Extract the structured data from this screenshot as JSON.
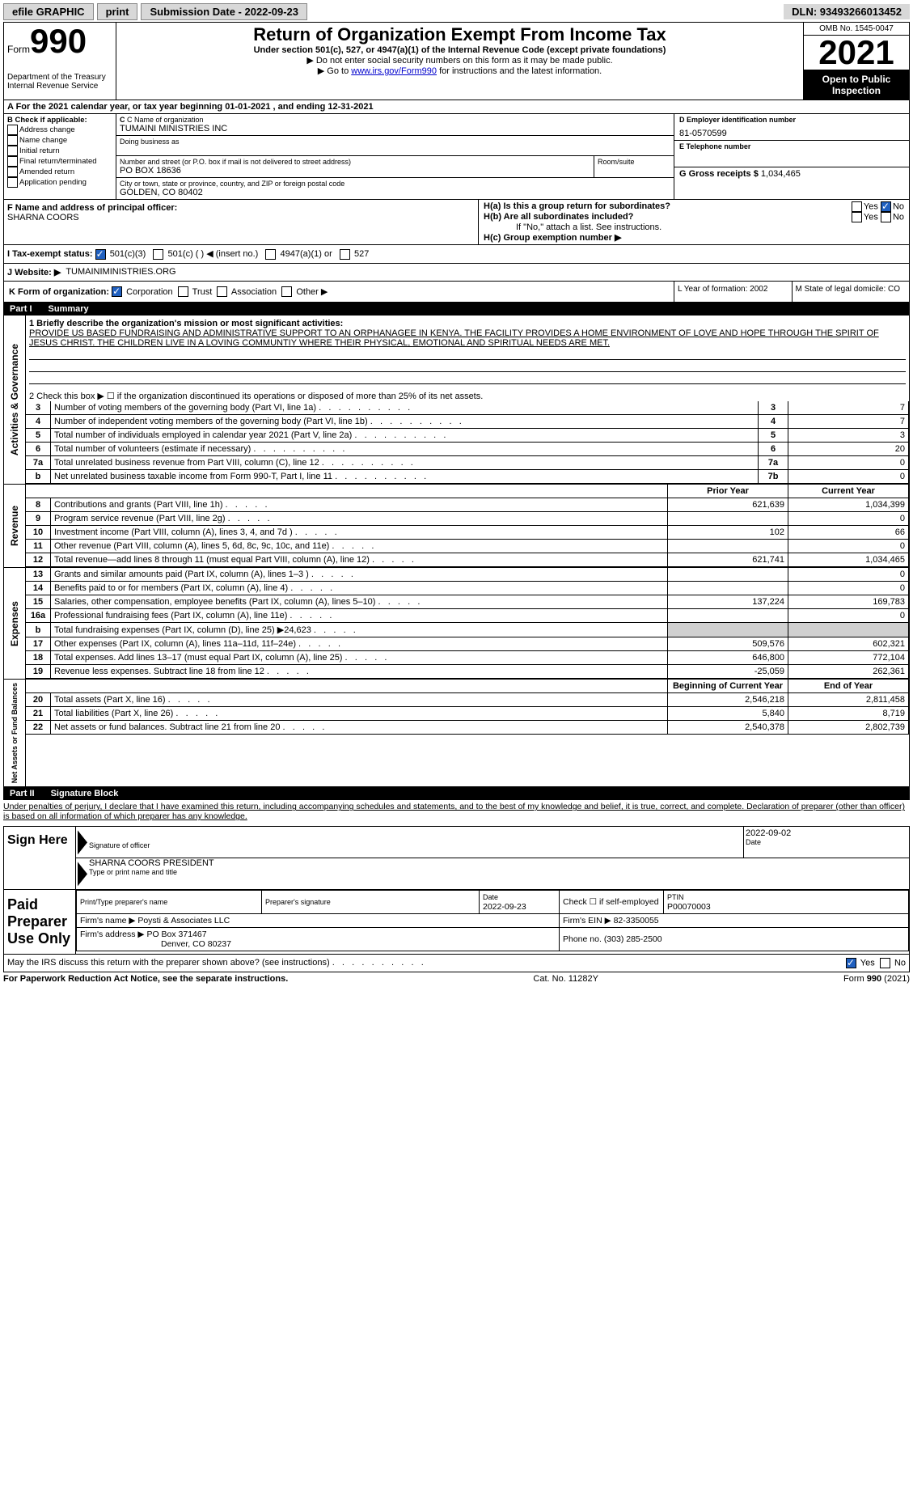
{
  "top": {
    "efile": "efile GRAPHIC",
    "print": "print",
    "sub_label": "Submission Date - 2022-09-23",
    "dln": "DLN: 93493266013452"
  },
  "header": {
    "form_label": "Form",
    "form_number": "990",
    "dept": "Department of the Treasury",
    "irs": "Internal Revenue Service",
    "title": "Return of Organization Exempt From Income Tax",
    "sub": "Under section 501(c), 527, or 4947(a)(1) of the Internal Revenue Code (except private foundations)",
    "note1": "▶ Do not enter social security numbers on this form as it may be made public.",
    "note2_pre": "▶ Go to ",
    "note2_link": "www.irs.gov/Form990",
    "note2_post": " for instructions and the latest information.",
    "omb": "OMB No. 1545-0047",
    "year": "2021",
    "open": "Open to Public Inspection"
  },
  "a_line": "A For the 2021 calendar year, or tax year beginning 01-01-2021    , and ending 12-31-2021",
  "b": {
    "label": "B Check if applicable:",
    "opts": [
      "Address change",
      "Name change",
      "Initial return",
      "Final return/terminated",
      "Amended return",
      "Application pending"
    ]
  },
  "c": {
    "name_label": "C Name of organization",
    "name": "TUMAINI MINISTRIES INC",
    "dba_label": "Doing business as",
    "street_label": "Number and street (or P.O. box if mail is not delivered to street address)",
    "room_label": "Room/suite",
    "street": "PO BOX 18636",
    "city_label": "City or town, state or province, country, and ZIP or foreign postal code",
    "city": "GOLDEN, CO  80402"
  },
  "d": {
    "ein_label": "D Employer identification number",
    "ein": "81-0570599",
    "phone_label": "E Telephone number",
    "gross_label": "G Gross receipts $",
    "gross": "1,034,465"
  },
  "f": {
    "label": "F  Name and address of principal officer:",
    "name": "SHARNA COORS"
  },
  "h": {
    "a": "H(a)  Is this a group return for subordinates?",
    "b": "H(b)  Are all subordinates included?",
    "note": "If \"No,\" attach a list. See instructions.",
    "c": "H(c)  Group exemption number ▶",
    "yes": "Yes",
    "no": "No"
  },
  "i": {
    "label": "I   Tax-exempt status:",
    "opts": [
      "501(c)(3)",
      "501(c) (   ) ◀ (insert no.)",
      "4947(a)(1) or",
      "527"
    ]
  },
  "j": {
    "label": "J   Website: ▶",
    "value": " TUMAINIMINISTRIES.ORG"
  },
  "k": {
    "label": "K Form of organization:",
    "opts": [
      "Corporation",
      "Trust",
      "Association",
      "Other ▶"
    ],
    "l": "L Year of formation: 2002",
    "m": "M State of legal domicile: CO"
  },
  "part1": {
    "title": "Part I",
    "name": "Summary",
    "line1_label": "1  Briefly describe the organization's mission or most significant activities:",
    "mission": "PROVIDE US BASED FUNDRAISING AND ADMINISTRATIVE SUPPORT TO AN ORPHANAGEE IN KENYA. THE FACILITY PROVIDES A HOME ENVIRONMENT OF LOVE AND HOPE THROUGH THE SPIRIT OF JESUS CHRIST. THE CHILDREN LIVE IN A LOVING COMMUNTIY WHERE THEIR PHYSICAL, EMOTIONAL AND SPIRITUAL NEEDS ARE MET.",
    "line2": "2   Check this box ▶ ☐  if the organization discontinued its operations or disposed of more than 25% of its net assets.",
    "gov_rows": [
      {
        "n": "3",
        "t": "Number of voting members of the governing body (Part VI, line 1a)",
        "l": "3",
        "v": "7"
      },
      {
        "n": "4",
        "t": "Number of independent voting members of the governing body (Part VI, line 1b)",
        "l": "4",
        "v": "7"
      },
      {
        "n": "5",
        "t": "Total number of individuals employed in calendar year 2021 (Part V, line 2a)",
        "l": "5",
        "v": "3"
      },
      {
        "n": "6",
        "t": "Total number of volunteers (estimate if necessary)",
        "l": "6",
        "v": "20"
      },
      {
        "n": "7a",
        "t": "Total unrelated business revenue from Part VIII, column (C), line 12",
        "l": "7a",
        "v": "0"
      },
      {
        "n": "b",
        "t": "Net unrelated business taxable income from Form 990-T, Part I, line 11",
        "l": "7b",
        "v": "0"
      }
    ],
    "prior": "Prior Year",
    "current": "Current Year",
    "rev_rows": [
      {
        "n": "8",
        "t": "Contributions and grants (Part VIII, line 1h)",
        "p": "621,639",
        "c": "1,034,399"
      },
      {
        "n": "9",
        "t": "Program service revenue (Part VIII, line 2g)",
        "p": "",
        "c": "0"
      },
      {
        "n": "10",
        "t": "Investment income (Part VIII, column (A), lines 3, 4, and 7d )",
        "p": "102",
        "c": "66"
      },
      {
        "n": "11",
        "t": "Other revenue (Part VIII, column (A), lines 5, 6d, 8c, 9c, 10c, and 11e)",
        "p": "",
        "c": "0"
      },
      {
        "n": "12",
        "t": "Total revenue—add lines 8 through 11 (must equal Part VIII, column (A), line 12)",
        "p": "621,741",
        "c": "1,034,465"
      }
    ],
    "exp_rows": [
      {
        "n": "13",
        "t": "Grants and similar amounts paid (Part IX, column (A), lines 1–3 )",
        "p": "",
        "c": "0"
      },
      {
        "n": "14",
        "t": "Benefits paid to or for members (Part IX, column (A), line 4)",
        "p": "",
        "c": "0"
      },
      {
        "n": "15",
        "t": "Salaries, other compensation, employee benefits (Part IX, column (A), lines 5–10)",
        "p": "137,224",
        "c": "169,783"
      },
      {
        "n": "16a",
        "t": "Professional fundraising fees (Part IX, column (A), line 11e)",
        "p": "",
        "c": "0"
      },
      {
        "n": "b",
        "t": "Total fundraising expenses (Part IX, column (D), line 25) ▶24,623",
        "p": "GRAY",
        "c": "GRAY"
      },
      {
        "n": "17",
        "t": "Other expenses (Part IX, column (A), lines 11a–11d, 11f–24e)",
        "p": "509,576",
        "c": "602,321"
      },
      {
        "n": "18",
        "t": "Total expenses. Add lines 13–17 (must equal Part IX, column (A), line 25)",
        "p": "646,800",
        "c": "772,104"
      },
      {
        "n": "19",
        "t": "Revenue less expenses. Subtract line 18 from line 12",
        "p": "-25,059",
        "c": "262,361"
      }
    ],
    "begin": "Beginning of Current Year",
    "end": "End of Year",
    "net_rows": [
      {
        "n": "20",
        "t": "Total assets (Part X, line 16)",
        "p": "2,546,218",
        "c": "2,811,458"
      },
      {
        "n": "21",
        "t": "Total liabilities (Part X, line 26)",
        "p": "5,840",
        "c": "8,719"
      },
      {
        "n": "22",
        "t": "Net assets or fund balances. Subtract line 21 from line 20",
        "p": "2,540,378",
        "c": "2,802,739"
      }
    ]
  },
  "vert_labels": {
    "gov": "Activities & Governance",
    "rev": "Revenue",
    "exp": "Expenses",
    "net": "Net Assets or Fund Balances"
  },
  "part2": {
    "title": "Part II",
    "name": "Signature Block",
    "disclaimer": "Under penalties of perjury, I declare that I have examined this return, including accompanying schedules and statements, and to the best of my knowledge and belief, it is true, correct, and complete. Declaration of preparer (other than officer) is based on all information of which preparer has any knowledge.",
    "sign_here": "Sign Here",
    "sig_officer": "Signature of officer",
    "sig_date": "2022-09-02",
    "date_label": "Date",
    "officer_name": "SHARNA COORS  PRESIDENT",
    "type_name": "Type or print name and title",
    "paid": "Paid Preparer Use Only",
    "prep_name_label": "Print/Type preparer's name",
    "prep_sig_label": "Preparer's signature",
    "prep_date": "2022-09-23",
    "check_self": "Check ☐ if self-employed",
    "ptin_label": "PTIN",
    "ptin": "P00070003",
    "firm_name_label": "Firm's name    ▶",
    "firm_name": "Poysti & Associates LLC",
    "firm_ein_label": "Firm's EIN ▶",
    "firm_ein": "82-3350055",
    "firm_addr_label": "Firm's address ▶",
    "firm_addr": "PO Box 371467",
    "firm_city": "Denver, CO  80237",
    "phone_label": "Phone no.",
    "phone": "(303) 285-2500",
    "discuss": "May the IRS discuss this return with the preparer shown above? (see instructions)"
  },
  "footer": {
    "left": "For Paperwork Reduction Act Notice, see the separate instructions.",
    "mid": "Cat. No. 11282Y",
    "right": "Form 990 (2021)"
  }
}
